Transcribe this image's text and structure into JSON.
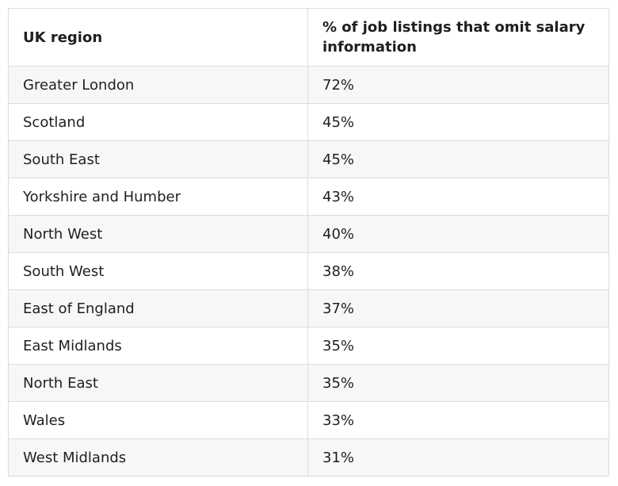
{
  "table": {
    "headers": [
      "UK region",
      "% of job listings that omit salary information"
    ],
    "rows": [
      [
        "Greater London",
        "72%"
      ],
      [
        "Scotland",
        "45%"
      ],
      [
        "South East",
        "45%"
      ],
      [
        "Yorkshire and Humber",
        "43%"
      ],
      [
        "North West",
        "40%"
      ],
      [
        "South West",
        "38%"
      ],
      [
        "East of England",
        "37%"
      ],
      [
        "East Midlands",
        "35%"
      ],
      [
        "North East",
        "35%"
      ],
      [
        "Wales",
        "33%"
      ],
      [
        "West Midlands",
        "31%"
      ]
    ]
  }
}
